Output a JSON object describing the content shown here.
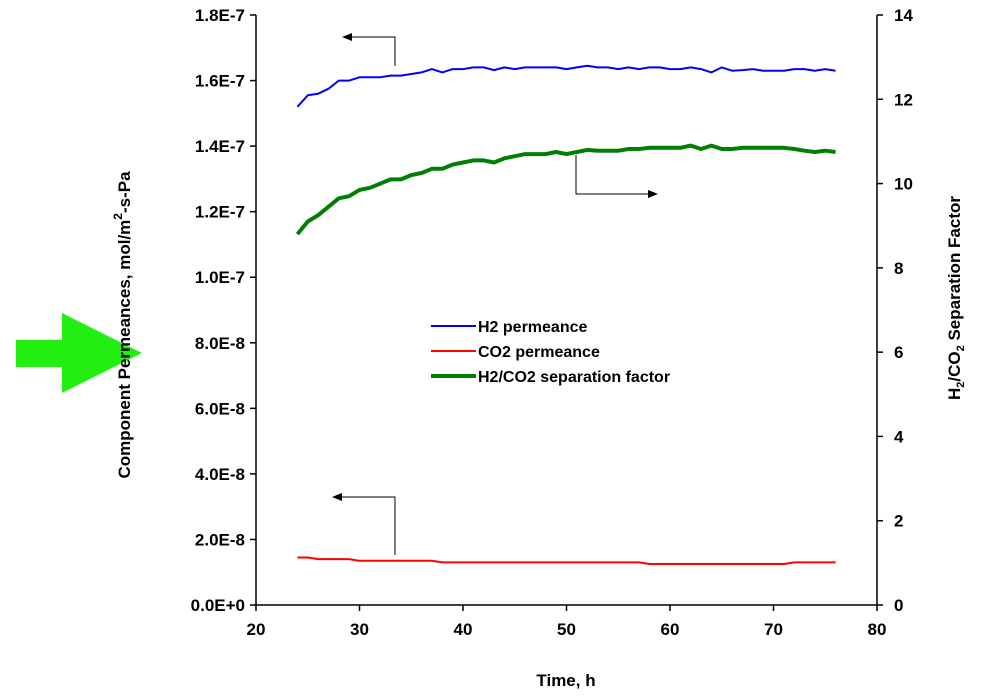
{
  "chart_data": {
    "type": "line",
    "xlabel": "Time, h",
    "ylabel_left": "Component Permeances, mol/m",
    "ylabel_left_sup": "2",
    "ylabel_left_suffix": "-s-Pa",
    "ylabel_right_parts": [
      "H",
      "2",
      "/CO",
      "2",
      " Separation Factor"
    ],
    "xlim": [
      20,
      80
    ],
    "ylim_left": [
      0,
      1.8e-07
    ],
    "ylim_right": [
      0,
      14
    ],
    "x_ticks": [
      20,
      30,
      40,
      50,
      60,
      70,
      80
    ],
    "x_tick_labels": [
      "20",
      "30",
      "40",
      "50",
      "60",
      "70",
      "80"
    ],
    "y_left_ticks": [
      0,
      2e-08,
      4e-08,
      6e-08,
      8e-08,
      1e-07,
      1.2e-07,
      1.4e-07,
      1.6e-07,
      1.8e-07
    ],
    "y_left_tick_labels": [
      "0.0E+0",
      "2.0E-8",
      "4.0E-8",
      "6.0E-8",
      "8.0E-8",
      "1.0E-7",
      "1.2E-7",
      "1.4E-7",
      "1.6E-7",
      "1.8E-7"
    ],
    "y_right_ticks": [
      0,
      2,
      4,
      6,
      8,
      10,
      12,
      14
    ],
    "y_right_tick_labels": [
      "0",
      "2",
      "4",
      "6",
      "8",
      "10",
      "12",
      "14"
    ],
    "grid": false,
    "legend_position": "center",
    "x": [
      24,
      25,
      26,
      27,
      28,
      29,
      30,
      31,
      32,
      33,
      34,
      35,
      36,
      37,
      38,
      39,
      40,
      41,
      42,
      43,
      44,
      45,
      46,
      47,
      48,
      49,
      50,
      51,
      52,
      53,
      54,
      55,
      56,
      57,
      58,
      59,
      60,
      61,
      62,
      63,
      64,
      65,
      66,
      67,
      68,
      69,
      70,
      71,
      72,
      73,
      74,
      75,
      76
    ],
    "series": [
      {
        "name": "H2 permeance",
        "axis": "left",
        "color": "#0000ff",
        "values": [
          1.52e-07,
          1.555e-07,
          1.56e-07,
          1.575e-07,
          1.6e-07,
          1.6e-07,
          1.61e-07,
          1.61e-07,
          1.61e-07,
          1.615e-07,
          1.615e-07,
          1.62e-07,
          1.625e-07,
          1.635e-07,
          1.625e-07,
          1.635e-07,
          1.635e-07,
          1.64e-07,
          1.64e-07,
          1.632e-07,
          1.64e-07,
          1.635e-07,
          1.64e-07,
          1.64e-07,
          1.64e-07,
          1.64e-07,
          1.635e-07,
          1.64e-07,
          1.645e-07,
          1.64e-07,
          1.64e-07,
          1.635e-07,
          1.64e-07,
          1.635e-07,
          1.64e-07,
          1.64e-07,
          1.635e-07,
          1.635e-07,
          1.64e-07,
          1.635e-07,
          1.625e-07,
          1.64e-07,
          1.63e-07,
          1.632e-07,
          1.635e-07,
          1.63e-07,
          1.63e-07,
          1.63e-07,
          1.635e-07,
          1.635e-07,
          1.63e-07,
          1.635e-07,
          1.63e-07
        ]
      },
      {
        "name": "CO2 permeance",
        "axis": "left",
        "color": "#ff0000",
        "values": [
          1.45e-08,
          1.45e-08,
          1.4e-08,
          1.4e-08,
          1.4e-08,
          1.4e-08,
          1.35e-08,
          1.35e-08,
          1.35e-08,
          1.35e-08,
          1.35e-08,
          1.35e-08,
          1.35e-08,
          1.35e-08,
          1.3e-08,
          1.3e-08,
          1.3e-08,
          1.3e-08,
          1.3e-08,
          1.3e-08,
          1.3e-08,
          1.3e-08,
          1.3e-08,
          1.3e-08,
          1.3e-08,
          1.3e-08,
          1.3e-08,
          1.3e-08,
          1.3e-08,
          1.3e-08,
          1.3e-08,
          1.3e-08,
          1.3e-08,
          1.3e-08,
          1.25e-08,
          1.25e-08,
          1.25e-08,
          1.25e-08,
          1.25e-08,
          1.25e-08,
          1.25e-08,
          1.25e-08,
          1.25e-08,
          1.25e-08,
          1.25e-08,
          1.25e-08,
          1.25e-08,
          1.25e-08,
          1.3e-08,
          1.3e-08,
          1.3e-08,
          1.3e-08,
          1.3e-08
        ]
      },
      {
        "name": "H2/CO2 separation factor",
        "axis": "right",
        "color": "#008000",
        "values": [
          8.8,
          9.1,
          9.25,
          9.45,
          9.65,
          9.7,
          9.85,
          9.9,
          10.0,
          10.1,
          10.1,
          10.2,
          10.25,
          10.35,
          10.35,
          10.45,
          10.5,
          10.55,
          10.55,
          10.5,
          10.6,
          10.65,
          10.7,
          10.7,
          10.7,
          10.75,
          10.7,
          10.75,
          10.8,
          10.78,
          10.78,
          10.78,
          10.82,
          10.82,
          10.85,
          10.85,
          10.85,
          10.85,
          10.9,
          10.82,
          10.9,
          10.82,
          10.82,
          10.85,
          10.85,
          10.85,
          10.85,
          10.85,
          10.82,
          10.78,
          10.75,
          10.78,
          10.75
        ]
      }
    ],
    "annotations": [
      {
        "type": "arrow-left",
        "series": "H2 permeance"
      },
      {
        "type": "arrow-right",
        "series": "H2/CO2 separation factor"
      },
      {
        "type": "arrow-left",
        "series": "CO2 permeance"
      }
    ]
  },
  "decor": {
    "pointer_icon": "green-right-arrow-icon",
    "pointer_color": "#22ee11"
  }
}
